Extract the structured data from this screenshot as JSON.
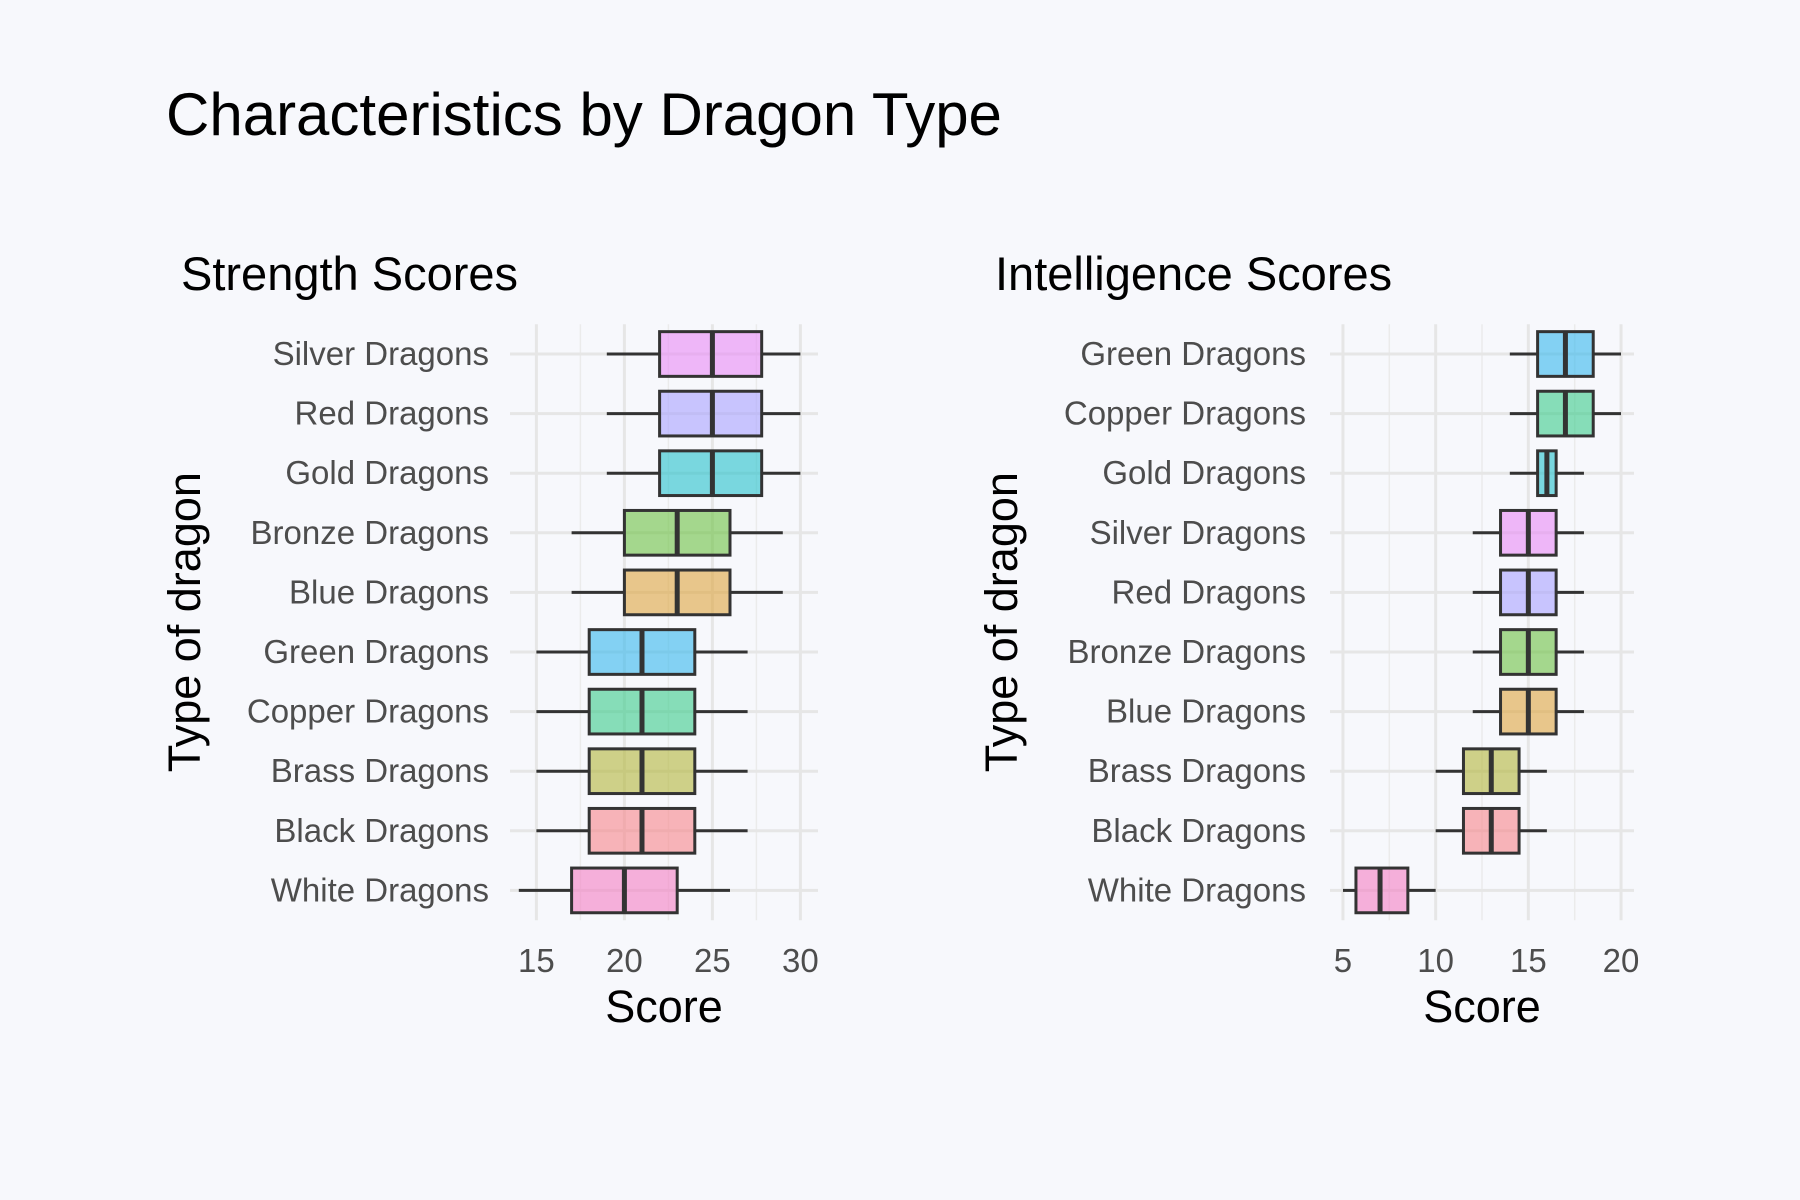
{
  "title": "Characteristics by Dragon Type",
  "chart_data": [
    {
      "type": "boxplot",
      "orientation": "horizontal",
      "title": "Strength Scores",
      "xlabel": "Score",
      "ylabel": "Type of dragon",
      "xlim": [
        13.5,
        31
      ],
      "xticks": [
        15,
        20,
        25,
        30
      ],
      "grid": true,
      "legend": "none",
      "categories": [
        "White Dragons",
        "Black Dragons",
        "Brass Dragons",
        "Copper Dragons",
        "Green Dragons",
        "Blue Dragons",
        "Bronze Dragons",
        "Gold Dragons",
        "Red Dragons",
        "Silver Dragons"
      ],
      "series": [
        {
          "category": "White Dragons",
          "min": 14,
          "q1": 17,
          "median": 20,
          "q3": 23,
          "max": 26,
          "color": "#f47fc3"
        },
        {
          "category": "Black Dragons",
          "min": 15,
          "q1": 18,
          "median": 21,
          "q3": 24,
          "max": 27,
          "color": "#f6858a"
        },
        {
          "category": "Brass Dragons",
          "min": 15,
          "q1": 18,
          "median": 21,
          "q3": 24,
          "max": 27,
          "color": "#b3b53a"
        },
        {
          "category": "Copper Dragons",
          "min": 15,
          "q1": 18,
          "median": 21,
          "q3": 24,
          "max": 27,
          "color": "#3bcb8a"
        },
        {
          "category": "Green Dragons",
          "min": 15,
          "q1": 18,
          "median": 21,
          "q3": 24,
          "max": 27,
          "color": "#35b7ec"
        },
        {
          "category": "Blue Dragons",
          "min": 17,
          "q1": 20,
          "median": 23,
          "q3": 26,
          "max": 29,
          "color": "#dda53f"
        },
        {
          "category": "Bronze Dragons",
          "min": 17,
          "q1": 20,
          "median": 23,
          "q3": 26,
          "max": 29,
          "color": "#6dc243"
        },
        {
          "category": "Gold Dragons",
          "min": 19,
          "q1": 22,
          "median": 25,
          "q3": 27.8,
          "max": 30,
          "color": "#25c1cb"
        },
        {
          "category": "Red Dragons",
          "min": 19,
          "q1": 22,
          "median": 25,
          "q3": 27.8,
          "max": 30,
          "color": "#a9a1ff"
        },
        {
          "category": "Silver Dragons",
          "min": 19,
          "q1": 22,
          "median": 25,
          "q3": 27.8,
          "max": 30,
          "color": "#e88bf5"
        }
      ]
    },
    {
      "type": "boxplot",
      "orientation": "horizontal",
      "title": "Intelligence Scores",
      "xlabel": "Score",
      "ylabel": "Type of dragon",
      "xlim": [
        4.3,
        20.7
      ],
      "xticks": [
        5,
        10,
        15,
        20
      ],
      "grid": true,
      "legend": "none",
      "categories": [
        "White Dragons",
        "Black Dragons",
        "Brass Dragons",
        "Blue Dragons",
        "Bronze Dragons",
        "Red Dragons",
        "Silver Dragons",
        "Gold Dragons",
        "Copper Dragons",
        "Green Dragons"
      ],
      "series": [
        {
          "category": "White Dragons",
          "min": 5,
          "q1": 5.7,
          "median": 7,
          "q3": 8.5,
          "max": 10,
          "color": "#f47fc3"
        },
        {
          "category": "Black Dragons",
          "min": 10,
          "q1": 11.5,
          "median": 13,
          "q3": 14.5,
          "max": 16,
          "color": "#f6858a"
        },
        {
          "category": "Brass Dragons",
          "min": 10,
          "q1": 11.5,
          "median": 13,
          "q3": 14.5,
          "max": 16,
          "color": "#b3b53a"
        },
        {
          "category": "Blue Dragons",
          "min": 12,
          "q1": 13.5,
          "median": 15,
          "q3": 16.5,
          "max": 18,
          "color": "#dda53f"
        },
        {
          "category": "Bronze Dragons",
          "min": 12,
          "q1": 13.5,
          "median": 15,
          "q3": 16.5,
          "max": 18,
          "color": "#6dc243"
        },
        {
          "category": "Red Dragons",
          "min": 12,
          "q1": 13.5,
          "median": 15,
          "q3": 16.5,
          "max": 18,
          "color": "#a9a1ff"
        },
        {
          "category": "Silver Dragons",
          "min": 12,
          "q1": 13.5,
          "median": 15,
          "q3": 16.5,
          "max": 18,
          "color": "#e88bf5"
        },
        {
          "category": "Gold Dragons",
          "min": 14,
          "q1": 15.5,
          "median": 16,
          "q3": 16.5,
          "max": 18,
          "color": "#25c1cb"
        },
        {
          "category": "Copper Dragons",
          "min": 14,
          "q1": 15.5,
          "median": 17,
          "q3": 18.5,
          "max": 20,
          "color": "#3bcb8a"
        },
        {
          "category": "Green Dragons",
          "min": 14,
          "q1": 15.5,
          "median": 17,
          "q3": 18.5,
          "max": 20,
          "color": "#35b7ec"
        }
      ]
    }
  ]
}
